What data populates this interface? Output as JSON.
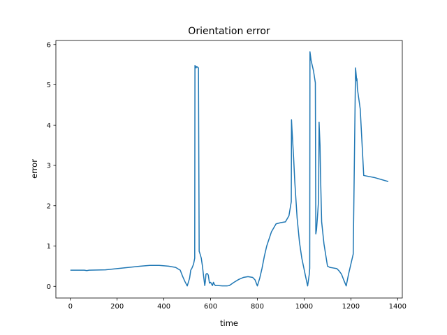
{
  "chart_data": {
    "type": "line",
    "title": "Orientation error",
    "xlabel": "time",
    "ylabel": "error",
    "xlim": [
      -62,
      1420
    ],
    "ylim": [
      -0.29,
      6.1
    ],
    "xticks": [
      0,
      200,
      400,
      600,
      800,
      1000,
      1200,
      1400
    ],
    "yticks": [
      0,
      1,
      2,
      3,
      4,
      5,
      6
    ],
    "grid": false,
    "legend": "none",
    "series": [
      {
        "color": "#1f77b4",
        "x": [
          0,
          60,
          70,
          80,
          150,
          200,
          250,
          300,
          340,
          380,
          420,
          450,
          470,
          480,
          490,
          500,
          510,
          515,
          520,
          527,
          532,
          533,
          538,
          539,
          544,
          548,
          551,
          555,
          560,
          565,
          570,
          575,
          578,
          580,
          585,
          590,
          595,
          600,
          605,
          608,
          612,
          615,
          620,
          630,
          650,
          670,
          680,
          700,
          720,
          740,
          760,
          780,
          790,
          800,
          810,
          820,
          830,
          840,
          860,
          880,
          900,
          920,
          935,
          945,
          946,
          948,
          955,
          960,
          970,
          980,
          990,
          1005,
          1015,
          1022,
          1024,
          1025,
          1030,
          1040,
          1048,
          1050,
          1053,
          1058,
          1062,
          1064,
          1068,
          1070,
          1075,
          1085,
          1100,
          1110,
          1120,
          1140,
          1150,
          1160,
          1170,
          1180,
          1190,
          1200,
          1210,
          1220,
          1225,
          1226,
          1228,
          1240,
          1255,
          1300,
          1360
        ],
        "y": [
          0.4,
          0.4,
          0.39,
          0.4,
          0.41,
          0.44,
          0.47,
          0.5,
          0.52,
          0.52,
          0.5,
          0.47,
          0.4,
          0.25,
          0.12,
          0.01,
          0.2,
          0.4,
          0.45,
          0.55,
          0.7,
          5.48,
          5.42,
          5.45,
          5.44,
          5.42,
          0.87,
          0.8,
          0.7,
          0.5,
          0.25,
          0.02,
          0.15,
          0.3,
          0.32,
          0.28,
          0.08,
          0.1,
          0.05,
          0.02,
          0.1,
          0.06,
          0.02,
          0.02,
          0.01,
          0.01,
          0.02,
          0.1,
          0.17,
          0.22,
          0.24,
          0.22,
          0.16,
          0.01,
          0.2,
          0.45,
          0.75,
          1.0,
          1.35,
          1.55,
          1.58,
          1.6,
          1.75,
          2.1,
          4.13,
          3.9,
          3.2,
          2.6,
          1.7,
          1.1,
          0.7,
          0.28,
          0.01,
          0.3,
          0.45,
          5.82,
          5.6,
          5.35,
          5.05,
          1.3,
          1.4,
          1.8,
          2.15,
          4.07,
          3.5,
          2.8,
          1.6,
          1.05,
          0.5,
          0.47,
          0.46,
          0.44,
          0.38,
          0.3,
          0.15,
          0.01,
          0.3,
          0.55,
          0.8,
          5.42,
          5.1,
          5.15,
          4.9,
          4.4,
          2.75,
          2.7,
          2.6
        ]
      }
    ]
  }
}
